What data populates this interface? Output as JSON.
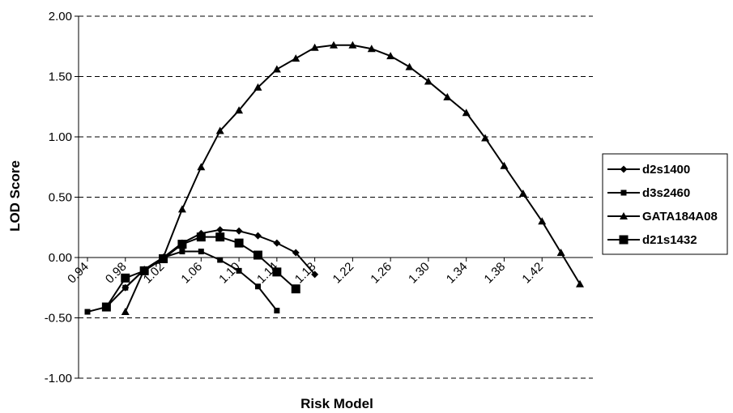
{
  "chart_data": {
    "type": "line",
    "title": "",
    "xlabel": "Risk Model",
    "ylabel": "LOD Score",
    "xlim": [
      0.94,
      1.46
    ],
    "ylim": [
      -1.0,
      2.0
    ],
    "yticks": [
      "2.00",
      "1.50",
      "1.00",
      "0.50",
      "0.00",
      "-0.50",
      "-1.00"
    ],
    "xticks": [
      "0.94",
      "0.98",
      "1.02",
      "1.06",
      "1.10",
      "1.14",
      "1.18",
      "1.22",
      "1.26",
      "1.30",
      "1.34",
      "1.38",
      "1.42"
    ],
    "grid": true,
    "legend_position": "right",
    "series": [
      {
        "name": "d2s1400",
        "marker": "diamond",
        "x": [
          0.98,
          1.0,
          1.02,
          1.04,
          1.06,
          1.08,
          1.1,
          1.12,
          1.14,
          1.16,
          1.18
        ],
        "y": [
          -0.25,
          -0.1,
          0.0,
          0.12,
          0.2,
          0.23,
          0.22,
          0.18,
          0.12,
          0.04,
          -0.14
        ]
      },
      {
        "name": "d3s2460",
        "marker": "square",
        "x": [
          0.94,
          0.96,
          0.98,
          1.0,
          1.02,
          1.04,
          1.06,
          1.08,
          1.1,
          1.12,
          1.14
        ],
        "y": [
          -0.45,
          -0.41,
          -0.25,
          -0.1,
          0.0,
          0.05,
          0.05,
          -0.02,
          -0.11,
          -0.24,
          -0.44
        ]
      },
      {
        "name": "GATA184A08",
        "marker": "triangle",
        "x": [
          0.98,
          1.0,
          1.02,
          1.04,
          1.06,
          1.08,
          1.1,
          1.12,
          1.14,
          1.16,
          1.18,
          1.2,
          1.22,
          1.24,
          1.26,
          1.28,
          1.3,
          1.32,
          1.34,
          1.36,
          1.38,
          1.4,
          1.42,
          1.44,
          1.46
        ],
        "y": [
          -0.45,
          -0.1,
          0.0,
          0.4,
          0.75,
          1.05,
          1.22,
          1.41,
          1.56,
          1.65,
          1.74,
          1.76,
          1.76,
          1.73,
          1.67,
          1.58,
          1.46,
          1.33,
          1.2,
          0.99,
          0.76,
          0.53,
          0.3,
          0.04,
          -0.22
        ]
      },
      {
        "name": "d21s1432",
        "marker": "bigsquare",
        "x": [
          0.96,
          0.98,
          1.0,
          1.02,
          1.04,
          1.06,
          1.08,
          1.1,
          1.12,
          1.14,
          1.16
        ],
        "y": [
          -0.41,
          -0.17,
          -0.11,
          -0.01,
          0.11,
          0.17,
          0.17,
          0.12,
          0.02,
          -0.12,
          -0.26
        ]
      }
    ]
  }
}
